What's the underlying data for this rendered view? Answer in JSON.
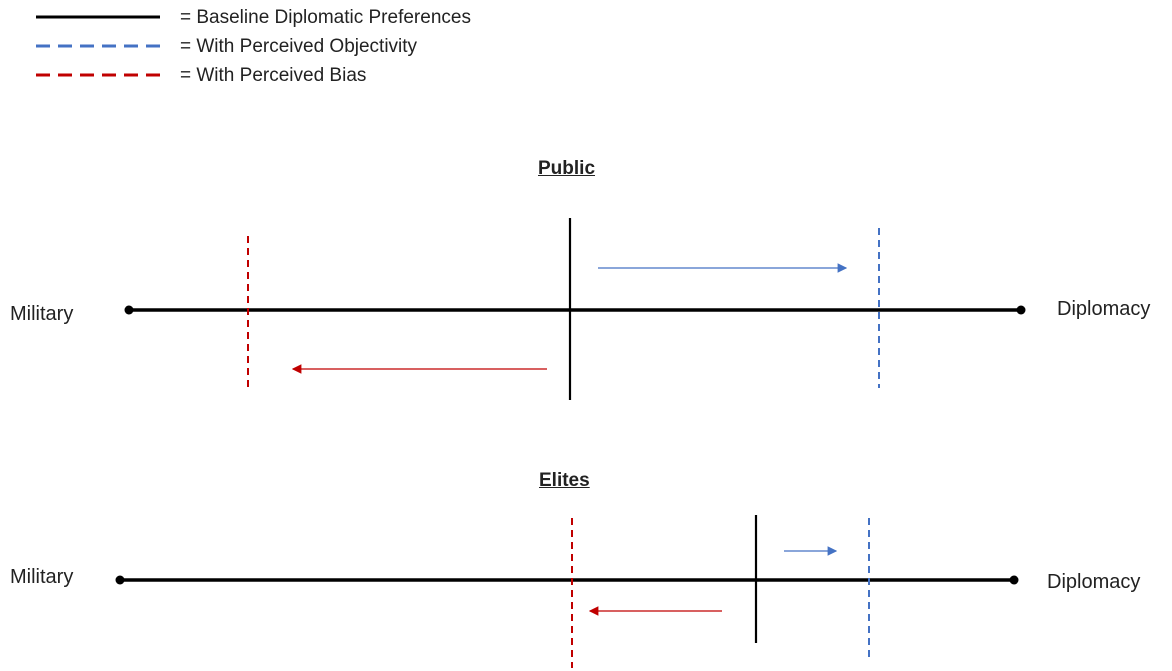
{
  "legend": {
    "baseline": "= Baseline Diplomatic Preferences",
    "objectivity": "= With Perceived Objectivity",
    "bias": "= With Perceived Bias"
  },
  "colors": {
    "baseline": "#000000",
    "objectivity": "#4472C4",
    "bias": "#C00000"
  },
  "panels": [
    {
      "title": "Public",
      "left_label": "Military",
      "right_label": "Diplomacy"
    },
    {
      "title": "Elites",
      "left_label": "Military",
      "right_label": "Diplomacy"
    }
  ]
}
